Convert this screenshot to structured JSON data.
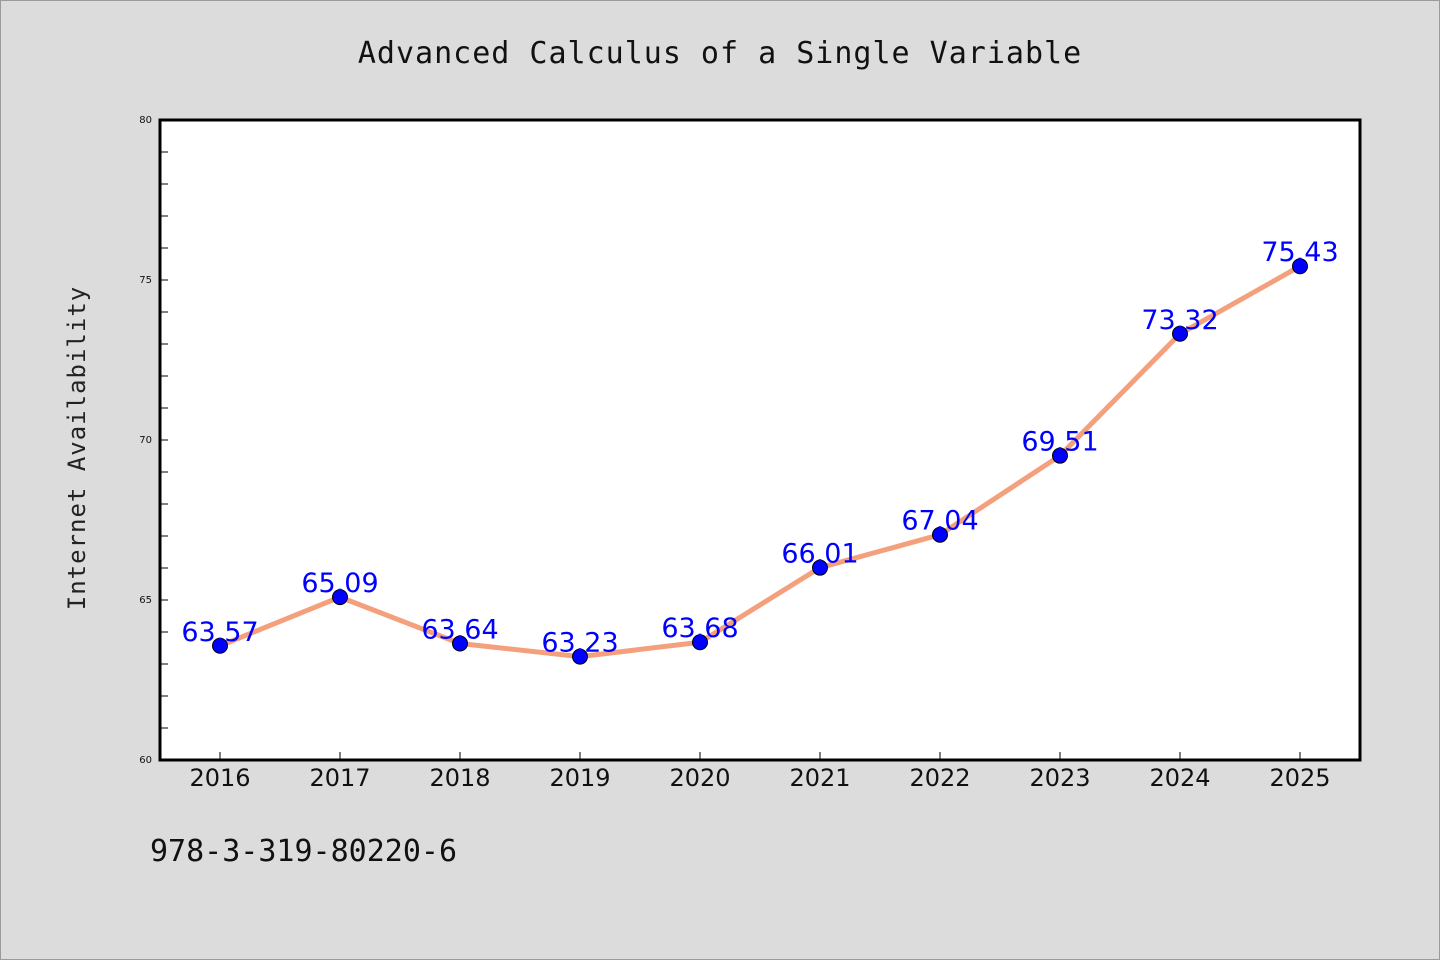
{
  "chart_data": {
    "type": "line",
    "title": "Advanced Calculus of a Single Variable",
    "xlabel": "",
    "ylabel": "Internet Availability",
    "categories": [
      "2016",
      "2017",
      "2018",
      "2019",
      "2020",
      "2021",
      "2022",
      "2023",
      "2024",
      "2025"
    ],
    "series": [
      {
        "values": [
          63.57,
          65.09,
          63.64,
          63.23,
          63.68,
          66.01,
          67.04,
          69.51,
          73.32,
          75.43
        ],
        "line_color": "#f4a07c",
        "marker_color": "#0000ff"
      }
    ],
    "data_labels": [
      "63.57",
      "65.09",
      "63.64",
      "63.23",
      "63.68",
      "66.01",
      "67.04",
      "69.51",
      "73.32",
      "75.43"
    ],
    "ylim": [
      60,
      80
    ],
    "yticks": [
      60,
      65,
      70,
      75,
      80
    ],
    "grid": false,
    "legend": "none"
  },
  "footer": {
    "text": "978-3-319-80220-6"
  },
  "colors": {
    "background": "#dcdcdc",
    "plot_background": "#ffffff",
    "line": "#f4a07c",
    "marker": "#0000ff",
    "data_label": "#0000ff"
  }
}
